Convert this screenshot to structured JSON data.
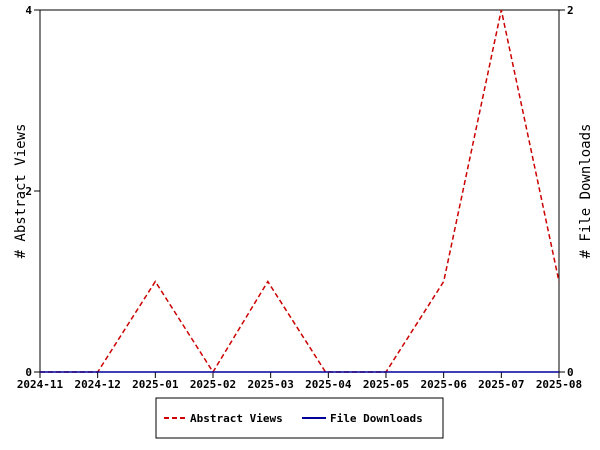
{
  "chart_data": {
    "type": "line",
    "title": "",
    "xlabel": "",
    "ylabel_left": "# Abstract Views",
    "ylabel_right": "# File Downloads",
    "categories": [
      "2024-11",
      "2024-12",
      "2025-01",
      "2025-02",
      "2025-03",
      "2025-04",
      "2025-05",
      "2025-06",
      "2025-07",
      "2025-08"
    ],
    "y_left_ticks": [
      "0",
      "2",
      "4"
    ],
    "y_right_ticks": [
      "0",
      "2"
    ],
    "ylim_left": [
      0,
      4
    ],
    "ylim_right": [
      0,
      2
    ],
    "x_values": [
      0,
      1,
      2,
      3,
      3.95,
      4.95,
      6,
      7,
      8,
      9
    ],
    "series": [
      {
        "name": "Abstract Views",
        "axis": "left",
        "color": "#cc0000",
        "dash": true,
        "values": [
          0,
          0,
          1,
          0,
          1,
          0,
          0,
          1,
          4,
          1
        ]
      },
      {
        "name": "File Downloads",
        "axis": "right",
        "color": "#000099",
        "dash": false,
        "values": [
          0,
          0,
          0,
          0,
          0,
          0,
          0,
          0,
          0,
          0
        ]
      }
    ],
    "grid": false,
    "legend_position": "bottom"
  }
}
